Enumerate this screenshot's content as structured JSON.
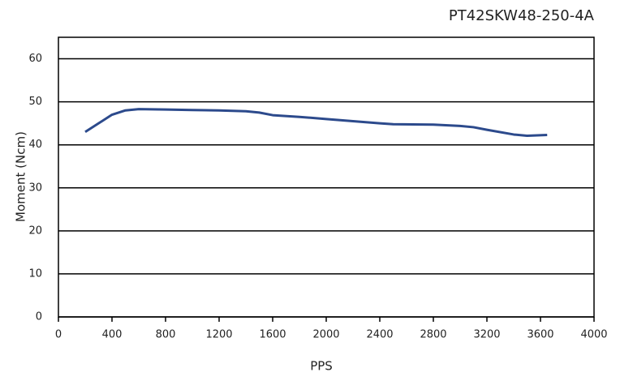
{
  "chart_data": {
    "type": "line",
    "title": "PT42SKW48-250-4A",
    "x_label": "PPS",
    "y_label": "Moment (Ncm)",
    "x": [
      200,
      300,
      400,
      500,
      600,
      800,
      1000,
      1200,
      1400,
      1500,
      1600,
      1800,
      2000,
      2200,
      2400,
      2500,
      2800,
      3000,
      3100,
      3200,
      3400,
      3500,
      3650
    ],
    "series": [
      {
        "name": "Moment",
        "color": "#2c4a8c",
        "values": [
          43,
          45,
          47,
          48,
          48.3,
          48.2,
          48.1,
          48,
          47.8,
          47.5,
          46.9,
          46.5,
          46,
          45.5,
          45,
          44.8,
          44.7,
          44.4,
          44.1,
          43.5,
          42.4,
          42.1,
          42.3
        ]
      }
    ],
    "xlim": [
      0,
      4000
    ],
    "xticks": [
      0,
      400,
      800,
      1200,
      1600,
      2000,
      2400,
      2800,
      3200,
      3600,
      4000
    ],
    "ylim": [
      0,
      65
    ],
    "yticks": [
      0,
      10,
      20,
      30,
      40,
      50,
      60
    ],
    "grid": true
  }
}
